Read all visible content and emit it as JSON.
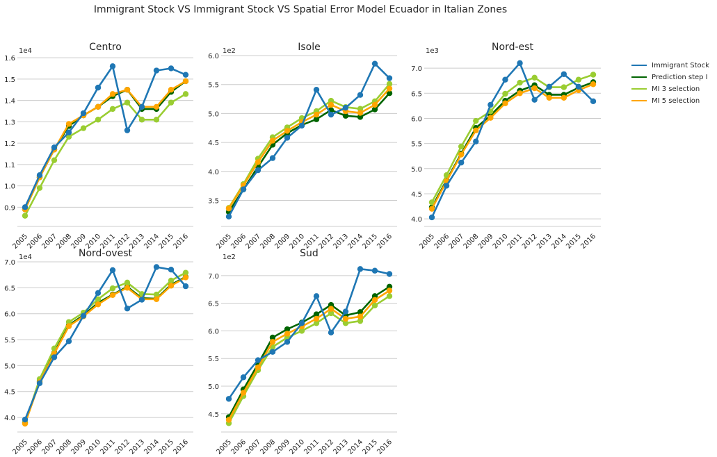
{
  "figure_title": "Immigrant Stock VS Immigrant Stock VS Spatial Error Model Ecuador in Italian Zones",
  "legend": [
    {
      "label": "Immigrant Stock",
      "color": "#1f77b4"
    },
    {
      "label": "Prediction step I",
      "color": "#006400"
    },
    {
      "label": "MI 3 selection",
      "color": "#9acd32"
    },
    {
      "label": "MI 5 selection",
      "color": "#ffa500"
    }
  ],
  "chart_data": [
    {
      "type": "line",
      "title": "Centro",
      "scale_label": "1e4",
      "x": [
        "2005",
        "2006",
        "2007",
        "2008",
        "2009",
        "2010",
        "2011",
        "2012",
        "2013",
        "2014",
        "2015",
        "2016"
      ],
      "yticks": [
        0.9,
        1.0,
        1.1,
        1.2,
        1.3,
        1.4,
        1.5,
        1.6
      ],
      "ylim": [
        0.81,
        1.61
      ],
      "series": [
        {
          "name": "Immigrant Stock",
          "color": "#1f77b4",
          "values": [
            0.9,
            1.05,
            1.18,
            1.25,
            1.34,
            1.46,
            1.56,
            1.26,
            1.37,
            1.54,
            1.55,
            1.52
          ]
        },
        {
          "name": "Prediction step I",
          "color": "#006400",
          "values": [
            0.89,
            1.04,
            1.17,
            1.28,
            1.33,
            1.37,
            1.42,
            1.45,
            1.36,
            1.36,
            1.44,
            1.49
          ]
        },
        {
          "name": "MI 3 selection",
          "color": "#9acd32",
          "values": [
            0.86,
            0.99,
            1.12,
            1.23,
            1.27,
            1.31,
            1.36,
            1.39,
            1.31,
            1.31,
            1.39,
            1.43
          ]
        },
        {
          "name": "MI 5 selection",
          "color": "#ffa500",
          "values": [
            0.89,
            1.04,
            1.17,
            1.29,
            1.33,
            1.37,
            1.43,
            1.45,
            1.37,
            1.37,
            1.45,
            1.49
          ]
        }
      ]
    },
    {
      "type": "line",
      "title": "Isole",
      "scale_label": "1e2",
      "x": [
        "2005",
        "2006",
        "2007",
        "2008",
        "2009",
        "2010",
        "2011",
        "2012",
        "2013",
        "2014",
        "2015",
        "2016"
      ],
      "yticks": [
        3.5,
        4.0,
        4.5,
        5.0,
        5.5,
        6.0
      ],
      "ylim": [
        3.05,
        6.0
      ],
      "series": [
        {
          "name": "Immigrant Stock",
          "color": "#1f77b4",
          "values": [
            3.22,
            3.69,
            4.02,
            4.23,
            4.58,
            4.79,
            5.41,
            4.98,
            5.1,
            5.32,
            5.86,
            5.61
          ]
        },
        {
          "name": "Prediction step I",
          "color": "#006400",
          "values": [
            3.3,
            3.69,
            4.08,
            4.46,
            4.66,
            4.8,
            4.9,
            5.06,
            4.96,
            4.94,
            5.07,
            5.35
          ]
        },
        {
          "name": "MI 3 selection",
          "color": "#9acd32",
          "values": [
            3.37,
            3.78,
            4.22,
            4.59,
            4.76,
            4.92,
            5.04,
            5.22,
            5.11,
            5.08,
            5.21,
            5.51
          ]
        },
        {
          "name": "MI 5 selection",
          "color": "#ffa500",
          "values": [
            3.36,
            3.76,
            4.16,
            4.53,
            4.7,
            4.85,
            4.98,
            5.15,
            5.04,
            5.01,
            5.15,
            5.43
          ]
        }
      ]
    },
    {
      "type": "line",
      "title": "Nord-est",
      "scale_label": "1e3",
      "x": [
        "2005",
        "2006",
        "2007",
        "2008",
        "2009",
        "2010",
        "2011",
        "2012",
        "2013",
        "2014",
        "2015",
        "2016"
      ],
      "yticks": [
        4.0,
        4.5,
        5.0,
        5.5,
        6.0,
        6.5,
        7.0
      ],
      "ylim": [
        3.85,
        7.25
      ],
      "series": [
        {
          "name": "Immigrant Stock",
          "color": "#1f77b4",
          "values": [
            4.03,
            4.66,
            5.12,
            5.54,
            6.27,
            6.77,
            7.1,
            6.37,
            6.63,
            6.88,
            6.63,
            6.34
          ]
        },
        {
          "name": "Prediction step I",
          "color": "#006400",
          "values": [
            4.23,
            4.77,
            5.3,
            5.81,
            6.06,
            6.35,
            6.55,
            6.66,
            6.47,
            6.47,
            6.61,
            6.72
          ]
        },
        {
          "name": "MI 3 selection",
          "color": "#9acd32",
          "values": [
            4.33,
            4.87,
            5.44,
            5.95,
            6.14,
            6.49,
            6.71,
            6.81,
            6.62,
            6.62,
            6.77,
            6.87
          ]
        },
        {
          "name": "MI 5 selection",
          "color": "#ffa500",
          "values": [
            4.2,
            4.75,
            5.28,
            5.76,
            6.01,
            6.3,
            6.5,
            6.6,
            6.41,
            6.41,
            6.56,
            6.68
          ]
        }
      ]
    },
    {
      "type": "line",
      "title": "Nord-ovest",
      "scale_label": "1e4",
      "x": [
        "2005",
        "2006",
        "2007",
        "2008",
        "2009",
        "2010",
        "2011",
        "2012",
        "2013",
        "2014",
        "2015",
        "2016"
      ],
      "yticks": [
        4.0,
        4.5,
        5.0,
        5.5,
        6.0,
        6.5,
        7.0
      ],
      "ylim": [
        3.72,
        7.0
      ],
      "series": [
        {
          "name": "Immigrant Stock",
          "color": "#1f77b4",
          "values": [
            3.96,
            4.66,
            5.16,
            5.47,
            5.96,
            6.4,
            6.84,
            6.1,
            6.27,
            6.9,
            6.85,
            6.53
          ]
        },
        {
          "name": "Prediction step I",
          "color": "#006400",
          "values": [
            3.9,
            4.7,
            5.25,
            5.78,
            5.97,
            6.21,
            6.37,
            6.52,
            6.3,
            6.29,
            6.56,
            6.71
          ]
        },
        {
          "name": "MI 3 selection",
          "color": "#9acd32",
          "values": [
            3.89,
            4.74,
            5.33,
            5.84,
            6.02,
            6.28,
            6.49,
            6.6,
            6.38,
            6.37,
            6.64,
            6.79
          ]
        },
        {
          "name": "MI 5 selection",
          "color": "#ffa500",
          "values": [
            3.88,
            4.68,
            5.23,
            5.76,
            5.95,
            6.18,
            6.36,
            6.5,
            6.28,
            6.28,
            6.54,
            6.7
          ]
        }
      ]
    },
    {
      "type": "line",
      "title": "Sud",
      "scale_label": "1e2",
      "x": [
        "2005",
        "2006",
        "2007",
        "2008",
        "2009",
        "2010",
        "2011",
        "2012",
        "2013",
        "2014",
        "2015",
        "2016"
      ],
      "yticks": [
        4.5,
        5.0,
        5.5,
        6.0,
        6.5,
        7.0
      ],
      "ylim": [
        4.17,
        7.25
      ],
      "series": [
        {
          "name": "Immigrant Stock",
          "color": "#1f77b4",
          "values": [
            4.77,
            5.16,
            5.47,
            5.62,
            5.8,
            6.14,
            6.63,
            5.97,
            6.35,
            7.12,
            7.09,
            7.03
          ]
        },
        {
          "name": "Prediction step I",
          "color": "#006400",
          "values": [
            4.44,
            4.94,
            5.4,
            5.88,
            6.03,
            6.15,
            6.3,
            6.47,
            6.28,
            6.34,
            6.63,
            6.8
          ]
        },
        {
          "name": "MI 3 selection",
          "color": "#9acd32",
          "values": [
            4.33,
            4.82,
            5.29,
            5.71,
            5.88,
            6.0,
            6.14,
            6.32,
            6.14,
            6.18,
            6.46,
            6.63
          ]
        },
        {
          "name": "MI 5 selection",
          "color": "#ffa500",
          "values": [
            4.39,
            4.88,
            5.34,
            5.8,
            5.95,
            6.08,
            6.22,
            6.4,
            6.22,
            6.26,
            6.56,
            6.73
          ]
        }
      ]
    }
  ]
}
